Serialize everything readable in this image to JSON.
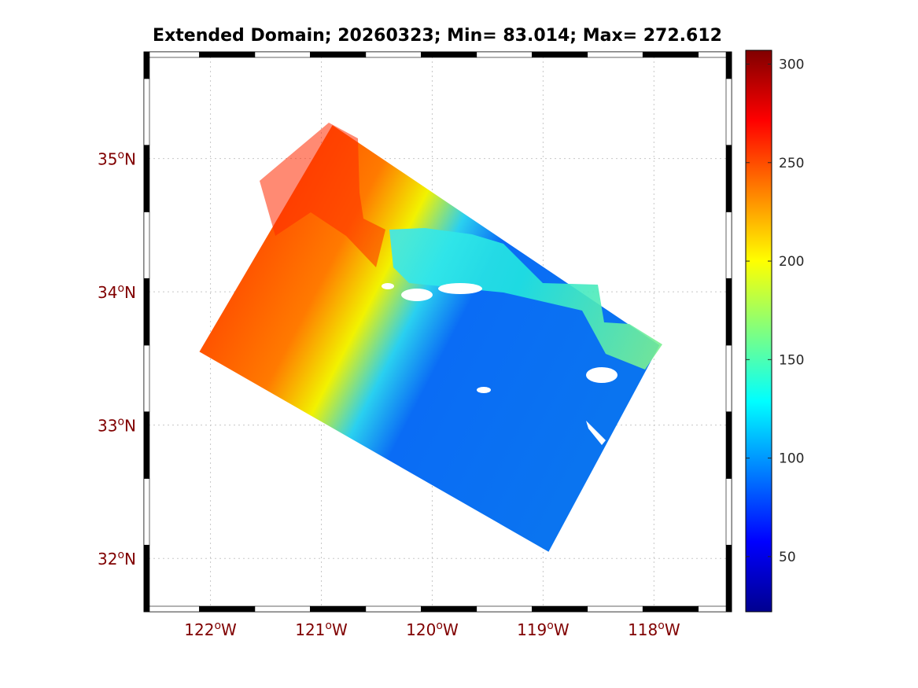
{
  "title": "Extended Domain; 20260323; Min= 83.014; Max= 272.612",
  "map": {
    "lon_range": [
      -122.6,
      -117.3
    ],
    "lat_range": [
      31.6,
      35.8
    ],
    "lon_ticks": [
      {
        "value": -122,
        "deg": "122",
        "hemi": "W"
      },
      {
        "value": -121,
        "deg": "121",
        "hemi": "W"
      },
      {
        "value": -120,
        "deg": "120",
        "hemi": "W"
      },
      {
        "value": -119,
        "deg": "119",
        "hemi": "W"
      },
      {
        "value": -118,
        "deg": "118",
        "hemi": "W"
      }
    ],
    "lat_ticks": [
      {
        "value": 35,
        "deg": "35",
        "hemi": "N"
      },
      {
        "value": 34,
        "deg": "34",
        "hemi": "N"
      },
      {
        "value": 33,
        "deg": "33",
        "hemi": "N"
      },
      {
        "value": 32,
        "deg": "32",
        "hemi": "N"
      }
    ],
    "degree_symbol": "o",
    "grid": "on",
    "colormap": "jet",
    "domain_corners": [
      {
        "lon": -122.1,
        "lat": 33.55
      },
      {
        "lon": -120.9,
        "lat": 35.25
      },
      {
        "lon": -117.95,
        "lat": 33.6
      },
      {
        "lon": -118.95,
        "lat": 32.05
      }
    ]
  },
  "colorbar": {
    "range": [
      22,
      307
    ],
    "ticks": [
      {
        "value": 300,
        "label": "300"
      },
      {
        "value": 250,
        "label": "250"
      },
      {
        "value": 200,
        "label": "200"
      },
      {
        "value": 150,
        "label": "150"
      },
      {
        "value": 100,
        "label": "100"
      },
      {
        "value": 50,
        "label": "50"
      }
    ]
  }
}
